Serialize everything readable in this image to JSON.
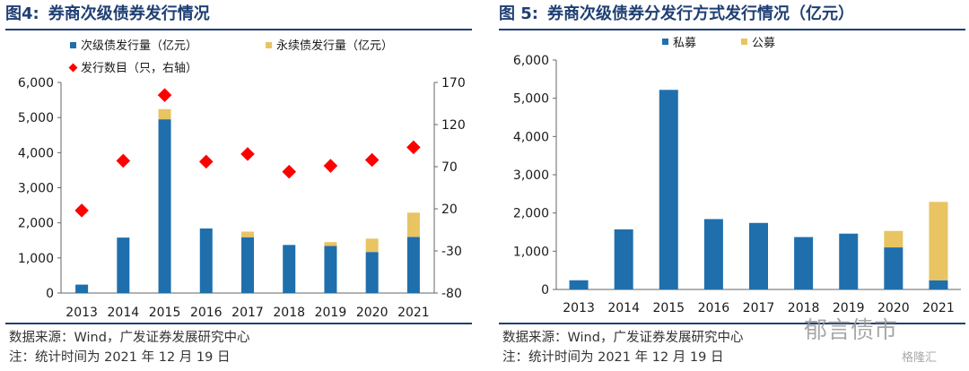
{
  "left": {
    "figure_number": "图4:",
    "title": "券商次级债券发行情况",
    "source": "数据来源：Wind，广发证券发展研究中心",
    "note": "注：统计时间为 2021 年 12 月 19 日"
  },
  "right": {
    "figure_number": "图 5:",
    "title": "券商次级债券分发行方式发行情况（亿元）",
    "source": "数据来源：Wind，广发证券发展研究中心",
    "note": "注：统计时间为 2021 年 12 月 19 日"
  },
  "watermark": "郁言债市",
  "watermark2": "格隆汇",
  "colors": {
    "blue": "#1f6fad",
    "gold": "#e8c463",
    "red": "#ff0000",
    "title": "#1f3f73"
  },
  "chart_data": [
    {
      "type": "bar",
      "stacked": true,
      "categories": [
        "2013",
        "2014",
        "2015",
        "2016",
        "2017",
        "2018",
        "2019",
        "2020",
        "2021"
      ],
      "series": [
        {
          "name": "次级债发行量（亿元）",
          "values": [
            240,
            1580,
            4950,
            1840,
            1590,
            1370,
            1340,
            1170,
            1600
          ]
        },
        {
          "name": "永续债发行量（亿元）",
          "values": [
            0,
            0,
            290,
            0,
            160,
            0,
            110,
            380,
            690
          ]
        },
        {
          "name": "发行数目（只，右轴）",
          "type": "scatter",
          "axis": "right",
          "values": [
            18,
            77,
            155,
            76,
            85,
            64,
            71,
            78,
            93
          ]
        }
      ],
      "y_left": {
        "range": [
          0,
          6000
        ],
        "ticks": [
          0,
          1000,
          2000,
          3000,
          4000,
          5000,
          6000
        ],
        "tick_labels": [
          "0",
          "1,000",
          "2,000",
          "3,000",
          "4,000",
          "5,000",
          "6,000"
        ]
      },
      "y_right": {
        "range": [
          -80,
          170
        ],
        "ticks": [
          -80,
          -30,
          20,
          70,
          120,
          170
        ],
        "tick_labels": [
          "-80",
          "-30",
          "20",
          "70",
          "120",
          "170"
        ]
      },
      "legend": "top-left",
      "grid": false
    },
    {
      "type": "bar",
      "stacked": true,
      "categories": [
        "2013",
        "2014",
        "2015",
        "2016",
        "2017",
        "2018",
        "2019",
        "2020",
        "2021"
      ],
      "series": [
        {
          "name": "私募",
          "values": [
            240,
            1570,
            5220,
            1840,
            1740,
            1370,
            1460,
            1100,
            240
          ]
        },
        {
          "name": "公募",
          "values": [
            0,
            0,
            0,
            0,
            0,
            0,
            0,
            430,
            2050
          ]
        }
      ],
      "y": {
        "range": [
          0,
          6000
        ],
        "ticks": [
          0,
          1000,
          2000,
          3000,
          4000,
          5000,
          6000
        ],
        "tick_labels": [
          "0",
          "1,000",
          "2,000",
          "3,000",
          "4,000",
          "5,000",
          "6,000"
        ]
      },
      "legend": "top-center",
      "grid": false
    }
  ]
}
